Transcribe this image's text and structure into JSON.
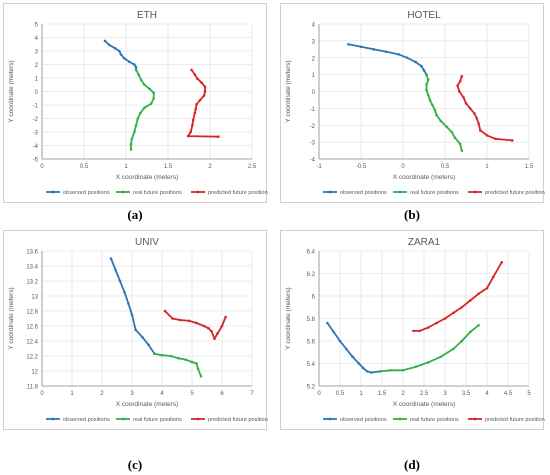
{
  "captions": [
    "(a)",
    "(b)",
    "(c)",
    "(d)"
  ],
  "legend_labels": [
    "observed positions",
    "real future positions",
    "predicted future positions"
  ],
  "colors": {
    "observed": "#2e75b6",
    "real": "#33b04a",
    "predicted": "#d62728",
    "grid": "#d9d9d9",
    "axis": "#8c8c8c",
    "text": "#595959"
  },
  "chart_data": [
    {
      "type": "line",
      "title": "ETH",
      "xlabel": "X coordinate (meters)",
      "ylabel": "Y coordinate (meters)",
      "xlim": [
        0,
        2.5
      ],
      "ylim": [
        -5,
        5
      ],
      "xticks": [
        0,
        0.5,
        1,
        1.5,
        2,
        2.5
      ],
      "yticks": [
        -5,
        -4,
        -3,
        -2,
        -1,
        0,
        1,
        2,
        3,
        4,
        5
      ],
      "xtick_labels": [
        "0",
        "0.5",
        "1",
        "1.5",
        "2",
        "2.5"
      ],
      "ytick_labels": [
        "-5",
        "-4",
        "-3",
        "-2",
        "-1",
        "0",
        "1",
        "2",
        "3",
        "4",
        "5"
      ],
      "grid": true,
      "legend_position": "bottom",
      "series": [
        {
          "name": "observed positions",
          "points": [
            [
              0.75,
              3.75
            ],
            [
              0.8,
              3.45
            ],
            [
              0.87,
              3.2
            ],
            [
              0.92,
              3.0
            ],
            [
              0.94,
              2.75
            ],
            [
              0.98,
              2.45
            ],
            [
              1.04,
              2.2
            ],
            [
              1.1,
              2.0
            ],
            [
              1.12,
              1.8
            ],
            [
              1.12,
              1.6
            ]
          ]
        },
        {
          "name": "real future positions",
          "points": [
            [
              1.12,
              1.6
            ],
            [
              1.15,
              1.25
            ],
            [
              1.18,
              0.85
            ],
            [
              1.22,
              0.5
            ],
            [
              1.28,
              0.2
            ],
            [
              1.33,
              -0.1
            ],
            [
              1.33,
              -0.5
            ],
            [
              1.3,
              -0.9
            ],
            [
              1.22,
              -1.2
            ],
            [
              1.17,
              -1.6
            ],
            [
              1.14,
              -2.0
            ],
            [
              1.12,
              -2.5
            ],
            [
              1.1,
              -3.0
            ],
            [
              1.07,
              -3.5
            ],
            [
              1.06,
              -3.9
            ],
            [
              1.06,
              -4.3
            ]
          ]
        },
        {
          "name": "predicted future positions",
          "points": [
            [
              1.78,
              1.6
            ],
            [
              1.82,
              1.25
            ],
            [
              1.85,
              0.95
            ],
            [
              1.9,
              0.65
            ],
            [
              1.94,
              0.35
            ],
            [
              1.94,
              0.0
            ],
            [
              1.93,
              -0.3
            ],
            [
              1.88,
              -0.65
            ],
            [
              1.84,
              -0.95
            ],
            [
              1.83,
              -1.3
            ],
            [
              1.82,
              -1.6
            ],
            [
              1.8,
              -2.1
            ],
            [
              1.79,
              -2.5
            ],
            [
              1.77,
              -3.0
            ],
            [
              1.74,
              -3.3
            ],
            [
              2.1,
              -3.35
            ]
          ]
        }
      ]
    },
    {
      "type": "line",
      "title": "HOTEL",
      "xlabel": "X coordinate (meters)",
      "ylabel": "Y coordinate (meters)",
      "xlim": [
        -1,
        1.5
      ],
      "ylim": [
        -4,
        4
      ],
      "xticks": [
        -1,
        -0.5,
        0,
        0.5,
        1,
        1.5
      ],
      "yticks": [
        -4,
        -3,
        -2,
        -1,
        0,
        1,
        2,
        3,
        4
      ],
      "xtick_labels": [
        "-1",
        "-0.5",
        "0",
        "0.5",
        "1",
        "1.5"
      ],
      "ytick_labels": [
        "-4",
        "-3",
        "-2",
        "-1",
        "0",
        "1",
        "2",
        "3",
        "4"
      ],
      "grid": true,
      "legend_position": "bottom",
      "series": [
        {
          "name": "observed positions",
          "points": [
            [
              -0.65,
              2.8
            ],
            [
              -0.5,
              2.65
            ],
            [
              -0.35,
              2.5
            ],
            [
              -0.2,
              2.35
            ],
            [
              -0.05,
              2.2
            ],
            [
              0.05,
              2.0
            ],
            [
              0.15,
              1.75
            ],
            [
              0.22,
              1.5
            ],
            [
              0.25,
              1.25
            ],
            [
              0.28,
              1.0
            ]
          ]
        },
        {
          "name": "real future positions",
          "points": [
            [
              0.28,
              1.0
            ],
            [
              0.3,
              0.7
            ],
            [
              0.28,
              0.4
            ],
            [
              0.28,
              0.1
            ],
            [
              0.3,
              -0.2
            ],
            [
              0.32,
              -0.5
            ],
            [
              0.35,
              -0.8
            ],
            [
              0.38,
              -1.1
            ],
            [
              0.4,
              -1.4
            ],
            [
              0.45,
              -1.75
            ],
            [
              0.52,
              -2.1
            ],
            [
              0.58,
              -2.4
            ],
            [
              0.62,
              -2.75
            ],
            [
              0.68,
              -3.1
            ],
            [
              0.7,
              -3.5
            ]
          ]
        },
        {
          "name": "predicted future positions",
          "points": [
            [
              0.7,
              0.9
            ],
            [
              0.68,
              0.6
            ],
            [
              0.65,
              0.35
            ],
            [
              0.67,
              0.0
            ],
            [
              0.72,
              -0.35
            ],
            [
              0.75,
              -0.7
            ],
            [
              0.8,
              -1.0
            ],
            [
              0.85,
              -1.3
            ],
            [
              0.88,
              -1.6
            ],
            [
              0.9,
              -1.9
            ],
            [
              0.92,
              -2.3
            ],
            [
              1.0,
              -2.6
            ],
            [
              1.1,
              -2.8
            ],
            [
              1.3,
              -2.9
            ]
          ]
        }
      ]
    },
    {
      "type": "line",
      "title": "UNIV",
      "xlabel": "X coordinate (meters)",
      "ylabel": "Y coordinate (meters)",
      "xlim": [
        0,
        7
      ],
      "ylim": [
        11.8,
        13.6
      ],
      "xticks": [
        0,
        1,
        2,
        3,
        4,
        5,
        6,
        7
      ],
      "yticks": [
        11.8,
        12,
        12.2,
        12.4,
        12.6,
        12.8,
        13,
        13.2,
        13.4,
        13.6
      ],
      "xtick_labels": [
        "0",
        "1",
        "2",
        "3",
        "4",
        "5",
        "6",
        "7"
      ],
      "ytick_labels": [
        "11.8",
        "12",
        "12.2",
        "12.4",
        "12.6",
        "12.8",
        "13",
        "13.2",
        "13.4",
        "13.6"
      ],
      "grid": true,
      "legend_position": "bottom",
      "series": [
        {
          "name": "observed positions",
          "points": [
            [
              2.3,
              13.5
            ],
            [
              2.45,
              13.35
            ],
            [
              2.6,
              13.2
            ],
            [
              2.75,
              13.05
            ],
            [
              2.88,
              12.9
            ],
            [
              3.0,
              12.75
            ],
            [
              3.12,
              12.55
            ],
            [
              3.35,
              12.45
            ],
            [
              3.55,
              12.35
            ],
            [
              3.75,
              12.23
            ]
          ]
        },
        {
          "name": "real future positions",
          "points": [
            [
              3.75,
              12.23
            ],
            [
              4.0,
              12.21
            ],
            [
              4.3,
              12.2
            ],
            [
              4.55,
              12.17
            ],
            [
              4.8,
              12.15
            ],
            [
              5.0,
              12.12
            ],
            [
              5.15,
              12.1
            ],
            [
              5.2,
              12.03
            ],
            [
              5.3,
              11.93
            ]
          ]
        },
        {
          "name": "predicted future positions",
          "points": [
            [
              4.1,
              12.8
            ],
            [
              4.35,
              12.7
            ],
            [
              4.6,
              12.68
            ],
            [
              4.9,
              12.67
            ],
            [
              5.15,
              12.64
            ],
            [
              5.4,
              12.6
            ],
            [
              5.55,
              12.57
            ],
            [
              5.65,
              12.53
            ],
            [
              5.75,
              12.43
            ],
            [
              5.85,
              12.5
            ],
            [
              6.0,
              12.6
            ],
            [
              6.12,
              12.72
            ]
          ]
        }
      ]
    },
    {
      "type": "line",
      "title": "ZARA1",
      "xlabel": "X coordinate (meters)",
      "ylabel": "Y coordinate (meters)",
      "xlim": [
        0,
        5
      ],
      "ylim": [
        5.2,
        6.4
      ],
      "xticks": [
        0,
        0.5,
        1,
        1.5,
        2,
        2.5,
        3,
        3.5,
        4,
        4.5,
        5
      ],
      "yticks": [
        5.2,
        5.4,
        5.6,
        5.8,
        6,
        6.2,
        6.4
      ],
      "xtick_labels": [
        "0",
        "0.5",
        "1",
        "1.5",
        "2",
        "2.5",
        "3",
        "3.5",
        "4",
        "4.5",
        "5"
      ],
      "ytick_labels": [
        "5.2",
        "5.4",
        "5.6",
        "5.8",
        "6",
        "6.2",
        "6.4"
      ],
      "grid": true,
      "legend_position": "bottom",
      "series": [
        {
          "name": "observed positions",
          "points": [
            [
              0.2,
              5.76
            ],
            [
              0.35,
              5.68
            ],
            [
              0.5,
              5.6
            ],
            [
              0.65,
              5.53
            ],
            [
              0.8,
              5.46
            ],
            [
              0.95,
              5.4
            ],
            [
              1.05,
              5.36
            ],
            [
              1.15,
              5.33
            ],
            [
              1.25,
              5.32
            ],
            [
              1.45,
              5.33
            ]
          ]
        },
        {
          "name": "real future positions",
          "points": [
            [
              1.45,
              5.33
            ],
            [
              1.7,
              5.34
            ],
            [
              2.0,
              5.34
            ],
            [
              2.3,
              5.37
            ],
            [
              2.6,
              5.41
            ],
            [
              2.9,
              5.46
            ],
            [
              3.2,
              5.53
            ],
            [
              3.4,
              5.6
            ],
            [
              3.6,
              5.68
            ],
            [
              3.8,
              5.74
            ]
          ]
        },
        {
          "name": "predicted future positions",
          "points": [
            [
              2.25,
              5.69
            ],
            [
              2.4,
              5.69
            ],
            [
              2.6,
              5.72
            ],
            [
              2.8,
              5.76
            ],
            [
              3.0,
              5.8
            ],
            [
              3.2,
              5.85
            ],
            [
              3.4,
              5.9
            ],
            [
              3.6,
              5.96
            ],
            [
              3.8,
              6.02
            ],
            [
              4.0,
              6.07
            ],
            [
              4.15,
              6.17
            ],
            [
              4.35,
              6.3
            ]
          ]
        }
      ]
    }
  ]
}
